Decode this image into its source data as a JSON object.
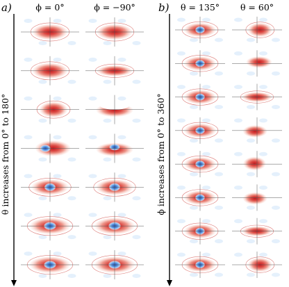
{
  "panels": [
    {
      "id": "a",
      "label": "a)",
      "vertical_label": "θ increases from 0° to 180°",
      "columns": [
        {
          "title": "ϕ = 0°"
        },
        {
          "title": "ϕ = −90°"
        }
      ],
      "rows": [
        [
          {
            "pattern": "plain-red"
          },
          {
            "pattern": "plain-red"
          }
        ],
        [
          {
            "pattern": "plain-red"
          },
          {
            "pattern": "plain-red-flat"
          }
        ],
        [
          {
            "pattern": "red-offset-right"
          },
          {
            "pattern": "red-crescent"
          }
        ],
        [
          {
            "pattern": "red-blue-left"
          },
          {
            "pattern": "red-blue-top"
          }
        ],
        [
          {
            "pattern": "red-blue"
          },
          {
            "pattern": "red-blue"
          }
        ],
        [
          {
            "pattern": "red-blue-low"
          },
          {
            "pattern": "red-blue-low"
          }
        ],
        [
          {
            "pattern": "red-blue-low"
          },
          {
            "pattern": "red-blue-low"
          }
        ]
      ]
    },
    {
      "id": "b",
      "label": "b)",
      "vertical_label": "ϕ increases from 0° to 360°",
      "columns": [
        {
          "title": "θ = 135°"
        },
        {
          "title": "θ = 60°"
        }
      ],
      "rows": [
        [
          {
            "pattern": "red-blue"
          },
          {
            "pattern": "red-offset-right"
          }
        ],
        [
          {
            "pattern": "red-blue"
          },
          {
            "pattern": "red-offset-right-up"
          }
        ],
        [
          {
            "pattern": "red-blue"
          },
          {
            "pattern": "plain-red-flat"
          }
        ],
        [
          {
            "pattern": "red-blue"
          },
          {
            "pattern": "red-offset-left"
          }
        ],
        [
          {
            "pattern": "red-blue"
          },
          {
            "pattern": "red-offset-left-up"
          }
        ],
        [
          {
            "pattern": "red-blue"
          },
          {
            "pattern": "red-offset-left"
          }
        ],
        [
          {
            "pattern": "red-blue"
          },
          {
            "pattern": "plain-red-flat"
          }
        ],
        [
          {
            "pattern": "red-blue"
          },
          {
            "pattern": "red-offset-right"
          }
        ]
      ]
    }
  ]
}
